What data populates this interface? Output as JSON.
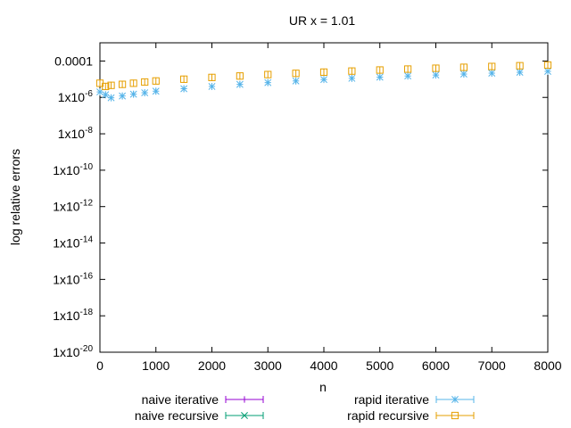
{
  "chart_data": {
    "type": "scatter",
    "title": "UR x = 1.01",
    "xlabel": "n",
    "ylabel": "log relative errors",
    "xlim": [
      0,
      8000
    ],
    "ylim_log10": [
      -20,
      -3
    ],
    "y_scale": "log",
    "grid": false,
    "legend_position": "bottom",
    "x_ticks": [
      {
        "value": 0,
        "label": "0"
      },
      {
        "value": 1000,
        "label": "1000"
      },
      {
        "value": 2000,
        "label": "2000"
      },
      {
        "value": 3000,
        "label": "3000"
      },
      {
        "value": 4000,
        "label": "4000"
      },
      {
        "value": 5000,
        "label": "5000"
      },
      {
        "value": 6000,
        "label": "6000"
      },
      {
        "value": 7000,
        "label": "7000"
      },
      {
        "value": 8000,
        "label": "8000"
      }
    ],
    "y_ticks": [
      {
        "log10": -4,
        "label": "0.0001"
      },
      {
        "log10": -6,
        "label": "1x10",
        "exp": "-6"
      },
      {
        "log10": -8,
        "label": "1x10",
        "exp": "-8"
      },
      {
        "log10": -10,
        "label": "1x10",
        "exp": "-10"
      },
      {
        "log10": -12,
        "label": "1x10",
        "exp": "-12"
      },
      {
        "log10": -14,
        "label": "1x10",
        "exp": "-14"
      },
      {
        "log10": -16,
        "label": "1x10",
        "exp": "-16"
      },
      {
        "log10": -18,
        "label": "1x10",
        "exp": "-18"
      },
      {
        "log10": -20,
        "label": "1x10",
        "exp": "-20"
      }
    ],
    "series": [
      {
        "name": "naive iterative",
        "color": "#9400d3",
        "marker": "plus",
        "x": [],
        "y": []
      },
      {
        "name": "naive recursive",
        "color": "#009e73",
        "marker": "cross",
        "x": [],
        "y": []
      },
      {
        "name": "rapid iterative",
        "color": "#56b4e9",
        "marker": "asterisk",
        "x": [
          0,
          100,
          200,
          400,
          600,
          800,
          1000,
          1500,
          2000,
          2500,
          3000,
          3500,
          4000,
          4500,
          5000,
          5500,
          6000,
          6500,
          7000,
          7500,
          8000
        ],
        "y": [
          2e-06,
          1.4e-06,
          9.5e-07,
          1.2e-06,
          1.5e-06,
          1.8e-06,
          2.2e-06,
          3e-06,
          4e-06,
          5.2e-06,
          6.5e-06,
          8e-06,
          9.6e-06,
          1.12e-05,
          1.3e-05,
          1.5e-05,
          1.7e-05,
          1.92e-05,
          2.15e-05,
          2.4e-05,
          2.7e-05
        ]
      },
      {
        "name": "rapid recursive",
        "color": "#e69f00",
        "marker": "square",
        "x": [
          0,
          100,
          200,
          400,
          600,
          800,
          1000,
          1500,
          2000,
          2500,
          3000,
          3500,
          4000,
          4500,
          5000,
          5500,
          6000,
          6500,
          7000,
          7500,
          8000
        ],
        "y": [
          6e-06,
          4e-06,
          4.6e-06,
          5.2e-06,
          6e-06,
          7e-06,
          8e-06,
          1e-05,
          1.25e-05,
          1.5e-05,
          1.8e-05,
          2.1e-05,
          2.45e-05,
          2.8e-05,
          3.2e-05,
          3.6e-05,
          4e-05,
          4.5e-05,
          5e-05,
          5.5e-05,
          6e-05
        ]
      }
    ]
  }
}
